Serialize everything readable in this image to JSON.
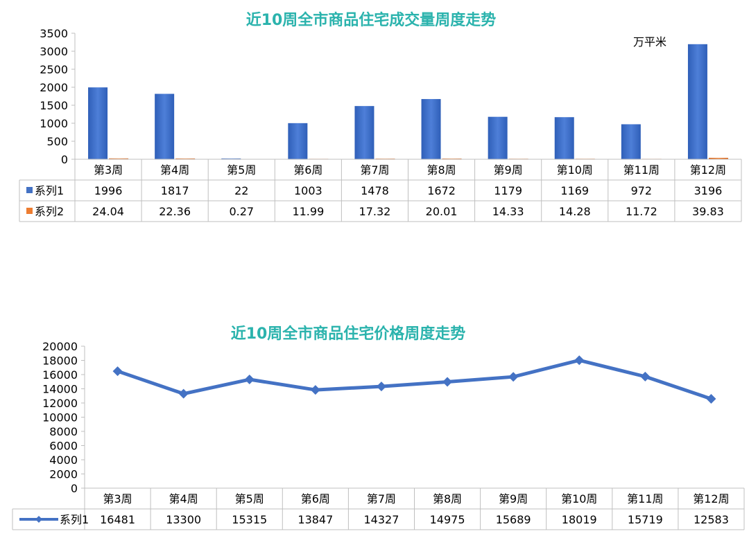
{
  "chart_data": [
    {
      "type": "bar",
      "title": "近10周全市商品住宅成交量周度走势",
      "unit_label": "万平米",
      "categories": [
        "第3周",
        "第4周",
        "第5周",
        "第6周",
        "第7周",
        "第8周",
        "第9周",
        "第10周",
        "第11周",
        "第12周"
      ],
      "series": [
        {
          "name": "系列1",
          "color": "#4472c4",
          "values": [
            1996,
            1817,
            22,
            1003,
            1478,
            1672,
            1179,
            1169,
            972,
            3196
          ]
        },
        {
          "name": "系列2",
          "color": "#ed7d31",
          "values": [
            24.04,
            22.36,
            0.27,
            11.99,
            17.32,
            20.01,
            14.33,
            14.28,
            11.72,
            39.83
          ]
        }
      ],
      "series_display": [
        [
          "1996",
          "1817",
          "22",
          "1003",
          "1478",
          "1672",
          "1179",
          "1169",
          "972",
          "3196"
        ],
        [
          "24.04",
          "22.36",
          "0.27",
          "11.99",
          "17.32",
          "20.01",
          "14.33",
          "14.28",
          "11.72",
          "39.83"
        ]
      ],
      "ylim": [
        0,
        3500
      ],
      "yticks": [
        "0",
        "500",
        "1000",
        "1500",
        "2000",
        "2500",
        "3000",
        "3500"
      ],
      "data_table": true
    },
    {
      "type": "line",
      "title": "近10周全市商品住宅价格周度走势",
      "categories": [
        "第3周",
        "第4周",
        "第5周",
        "第6周",
        "第7周",
        "第8周",
        "第9周",
        "第10周",
        "第11周",
        "第12周"
      ],
      "series": [
        {
          "name": "系列1",
          "color": "#4472c4",
          "values": [
            16481,
            13300,
            15315,
            13847,
            14327,
            14975,
            15689,
            18019,
            15719,
            12583
          ]
        }
      ],
      "series_display": [
        [
          "16481",
          "13300",
          "15315",
          "13847",
          "14327",
          "14975",
          "15689",
          "18019",
          "15719",
          "12583"
        ]
      ],
      "ylim": [
        0,
        20000
      ],
      "yticks": [
        "0",
        "2000",
        "4000",
        "6000",
        "8000",
        "10000",
        "12000",
        "14000",
        "16000",
        "18000",
        "20000"
      ],
      "data_table": true
    }
  ]
}
